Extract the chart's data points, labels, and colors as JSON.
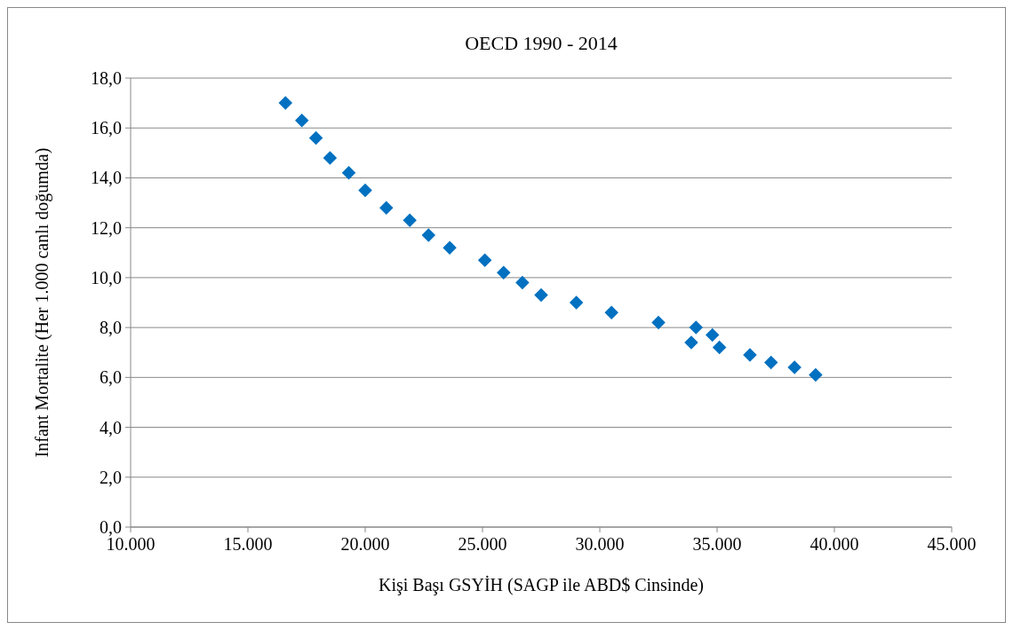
{
  "chart_data": {
    "type": "scatter",
    "title": "OECD 1990 - 2014",
    "xlabel": "Kişi Başı GSYİH (SAGP ile ABD$ Cinsinde)",
    "ylabel": "Infant Mortalite (Her 1.000 canlı doğumda)",
    "x": [
      16600,
      17300,
      17900,
      18500,
      19300,
      20000,
      20900,
      21900,
      22700,
      23600,
      25100,
      25900,
      26700,
      27500,
      29000,
      30500,
      32500,
      33900,
      34100,
      34800,
      35100,
      36400,
      37300,
      38300,
      39200
    ],
    "series": [
      {
        "color": "#0070c0",
        "values": [
          17.0,
          16.3,
          15.6,
          14.8,
          14.2,
          13.5,
          12.8,
          12.3,
          11.7,
          11.2,
          10.7,
          10.2,
          9.8,
          9.3,
          9.0,
          8.6,
          8.2,
          7.4,
          8.0,
          7.7,
          7.2,
          6.9,
          6.6,
          6.4,
          6.1
        ]
      }
    ],
    "xlim": [
      10000,
      45000
    ],
    "xticks": [
      {
        "value": 10000,
        "label": "10.000"
      },
      {
        "value": 15000,
        "label": "15.000"
      },
      {
        "value": 20000,
        "label": "20.000"
      },
      {
        "value": 25000,
        "label": "25.000"
      },
      {
        "value": 30000,
        "label": "30.000"
      },
      {
        "value": 35000,
        "label": "35.000"
      },
      {
        "value": 40000,
        "label": "40.000"
      },
      {
        "value": 45000,
        "label": "45.000"
      }
    ],
    "ylim": [
      0,
      18
    ],
    "yticks": [
      {
        "value": 0,
        "label": "0,0"
      },
      {
        "value": 2,
        "label": "2,0"
      },
      {
        "value": 4,
        "label": "4,0"
      },
      {
        "value": 6,
        "label": "6,0"
      },
      {
        "value": 8,
        "label": "8,0"
      },
      {
        "value": 10,
        "label": "10,0"
      },
      {
        "value": 12,
        "label": "12,0"
      },
      {
        "value": 14,
        "label": "14,0"
      },
      {
        "value": 16,
        "label": "16,0"
      },
      {
        "value": 18,
        "label": "18,0"
      }
    ],
    "grid": "y",
    "marker": "diamond"
  }
}
